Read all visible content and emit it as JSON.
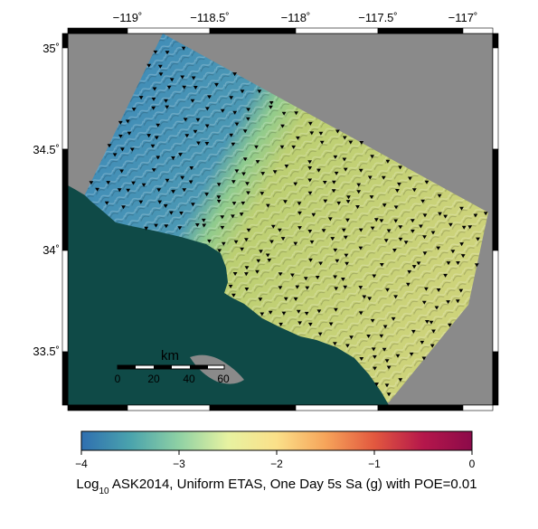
{
  "map": {
    "longitude_ticks": [
      "−119˚",
      "−118.5˚",
      "−118˚",
      "−117.5˚",
      "−117˚"
    ],
    "latitude_ticks": [
      "35˚",
      "34.5˚",
      "34˚",
      "33.5˚"
    ],
    "colors": {
      "ocean": "#0f4a47",
      "no_data": "#8a8a8a",
      "low_hazard": "#3e8cbd",
      "mid_hazard": "#c5cf70",
      "site_marker": "#000000"
    }
  },
  "scale_bar": {
    "unit": "km",
    "labels": [
      "0",
      "20",
      "40",
      "60"
    ]
  },
  "colorbar": {
    "ticks": [
      "−4",
      "−3",
      "−2",
      "−1",
      "0"
    ],
    "range": [
      -4,
      0
    ],
    "colors": [
      "#2f6fb0",
      "#4aa3ad",
      "#8fd1a4",
      "#e7f2a1",
      "#fbe089",
      "#f6a45a",
      "#e2583f",
      "#b5174b",
      "#8c0a4a"
    ]
  },
  "caption": {
    "prefix": "Log",
    "subscript": "10",
    "text": " ASK2014, Uniform ETAS, One Day 5s Sa (g) with POE=0.01"
  }
}
